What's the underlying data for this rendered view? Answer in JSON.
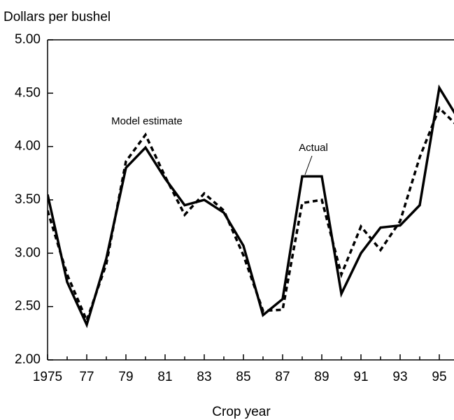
{
  "chart_data": {
    "type": "line",
    "title": "Dollars per bushel",
    "x_label": "Crop year",
    "x": [
      1975,
      1976,
      1977,
      1978,
      1979,
      1980,
      1981,
      1982,
      1983,
      1984,
      1985,
      1986,
      1987,
      1988,
      1989,
      1990,
      1991,
      1992,
      1993,
      1994,
      1995,
      1996
    ],
    "series": [
      {
        "name": "Actual",
        "color": "#000000",
        "dash": "solid",
        "values": [
          3.55,
          2.73,
          2.33,
          2.95,
          3.8,
          3.99,
          3.7,
          3.45,
          3.5,
          3.38,
          3.07,
          2.42,
          2.57,
          3.72,
          3.72,
          2.62,
          3.0,
          3.24,
          3.26,
          3.45,
          4.55,
          4.25
        ]
      },
      {
        "name": "Model estimate",
        "color": "#000000",
        "dash": "dashed",
        "values": [
          3.4,
          2.8,
          2.37,
          2.9,
          3.86,
          4.11,
          3.72,
          3.36,
          3.56,
          3.4,
          2.98,
          2.46,
          2.47,
          3.47,
          3.5,
          2.8,
          3.25,
          3.03,
          3.3,
          3.9,
          4.36,
          4.18
        ]
      }
    ],
    "xlim": [
      1975,
      1995.75
    ],
    "xticks": [
      1975,
      {
        "value": 1977,
        "label": "77"
      },
      {
        "value": 1979,
        "label": "79"
      },
      {
        "value": 1981,
        "label": "81"
      },
      {
        "value": 1983,
        "label": "83"
      },
      {
        "value": 1985,
        "label": "85"
      },
      {
        "value": 1987,
        "label": "87"
      },
      {
        "value": 1989,
        "label": "89"
      },
      {
        "value": 1991,
        "label": "91"
      },
      {
        "value": 1993,
        "label": "93"
      },
      {
        "value": 1995,
        "label": "95"
      }
    ],
    "xminorticks": [
      1976,
      1978,
      1980,
      1982,
      1984,
      1986,
      1988,
      1990,
      1992,
      1994
    ],
    "ylim": [
      2,
      5
    ],
    "yticks": [
      {
        "value": 2,
        "label": "2.00"
      },
      {
        "value": 2.5,
        "label": "2.50"
      },
      {
        "value": 3,
        "label": "3.00"
      },
      {
        "value": 3.5,
        "label": "3.50"
      },
      {
        "value": 4,
        "label": "4.00"
      },
      {
        "value": 4.5,
        "label": "4.50"
      },
      {
        "value": 5,
        "label": "5.00"
      }
    ],
    "grid": false
  }
}
